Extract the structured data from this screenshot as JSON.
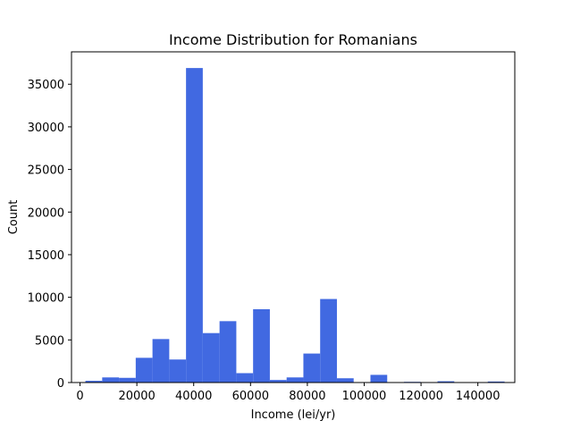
{
  "chart_data": {
    "type": "bar",
    "title": "Income Distribution for Romanians",
    "xlabel": "Income (lei/yr)",
    "ylabel": "Count",
    "xlim": [
      -3000,
      153000
    ],
    "ylim": [
      0,
      38800
    ],
    "xticks": [
      0,
      20000,
      40000,
      60000,
      80000,
      100000,
      120000,
      140000
    ],
    "yticks": [
      0,
      5000,
      10000,
      15000,
      20000,
      25000,
      30000,
      35000
    ],
    "bar_color": "#4169e1",
    "grid": false,
    "bins": [
      {
        "x0": 1898,
        "x1": 7800,
        "count": 200
      },
      {
        "x0": 7800,
        "x1": 13700,
        "count": 600
      },
      {
        "x0": 13700,
        "x1": 19600,
        "count": 550
      },
      {
        "x0": 19600,
        "x1": 25500,
        "count": 2900
      },
      {
        "x0": 25500,
        "x1": 31400,
        "count": 5100
      },
      {
        "x0": 31400,
        "x1": 37300,
        "count": 2700
      },
      {
        "x0": 37300,
        "x1": 43200,
        "count": 36900
      },
      {
        "x0": 43200,
        "x1": 49100,
        "count": 5800
      },
      {
        "x0": 49100,
        "x1": 55000,
        "count": 7200
      },
      {
        "x0": 55000,
        "x1": 60900,
        "count": 1100
      },
      {
        "x0": 60900,
        "x1": 66800,
        "count": 8600
      },
      {
        "x0": 66800,
        "x1": 72700,
        "count": 300
      },
      {
        "x0": 72700,
        "x1": 78600,
        "count": 600
      },
      {
        "x0": 78600,
        "x1": 84500,
        "count": 3400
      },
      {
        "x0": 84500,
        "x1": 90400,
        "count": 9800
      },
      {
        "x0": 90400,
        "x1": 96300,
        "count": 500
      },
      {
        "x0": 96300,
        "x1": 102200,
        "count": 50
      },
      {
        "x0": 102200,
        "x1": 108100,
        "count": 900
      },
      {
        "x0": 108100,
        "x1": 114000,
        "count": 0
      },
      {
        "x0": 114000,
        "x1": 119900,
        "count": 80
      },
      {
        "x0": 119900,
        "x1": 125800,
        "count": 0
      },
      {
        "x0": 125800,
        "x1": 131700,
        "count": 150
      },
      {
        "x0": 131700,
        "x1": 137600,
        "count": 0
      },
      {
        "x0": 137600,
        "x1": 143500,
        "count": 0
      },
      {
        "x0": 143500,
        "x1": 149400,
        "count": 120
      }
    ]
  }
}
